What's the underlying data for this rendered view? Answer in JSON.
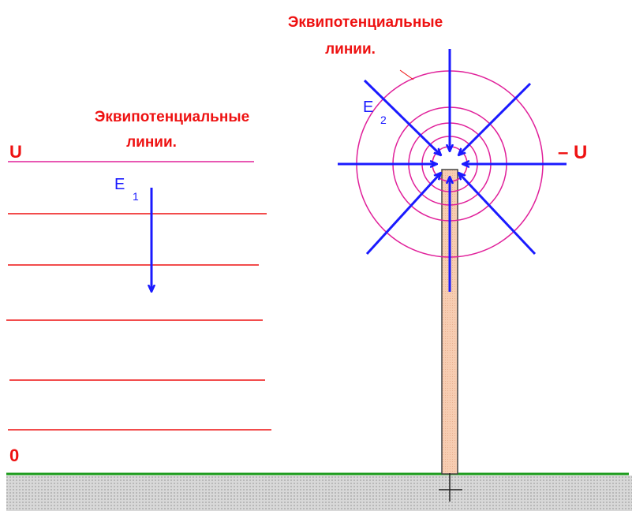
{
  "left": {
    "caption": [
      "Эквипотенциальные",
      "линии."
    ],
    "label_top": "U",
    "label_bottom": "0",
    "field": {
      "symbol": "E",
      "subscript": "1"
    }
  },
  "right": {
    "caption": [
      "Эквипотенциальные",
      "линии."
    ],
    "field": {
      "symbol": "E",
      "subscript": "2"
    },
    "potential": "– U"
  }
}
